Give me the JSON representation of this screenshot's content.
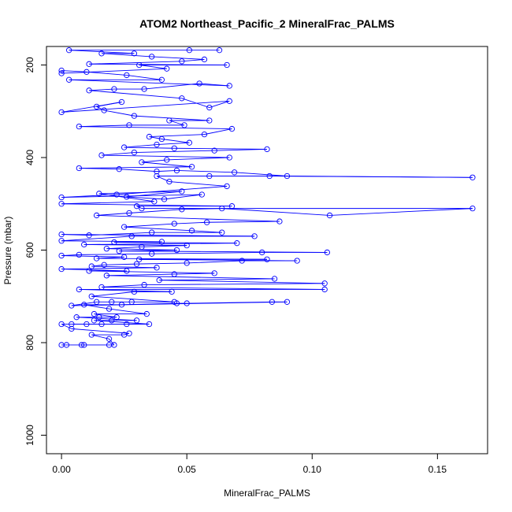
{
  "chart_data": {
    "type": "line",
    "title": "ATOM2 Northeast_Pacific_2 MineralFrac_PALMS",
    "xlabel": "MineralFrac_PALMS",
    "ylabel": "Pressure (mbar)",
    "xlim": [
      -0.006,
      0.17
    ],
    "ylim": [
      1040,
      160
    ],
    "y_inverted": true,
    "grid": false,
    "legend": "none",
    "x_ticks": [
      0.0,
      0.05,
      0.1,
      0.15
    ],
    "x_tick_labels": [
      "0.00",
      "0.05",
      "0.10",
      "0.15"
    ],
    "y_ticks": [
      200,
      400,
      600,
      800,
      1000
    ],
    "y_tick_labels": [
      "200",
      "400",
      "600",
      "800",
      "1000"
    ],
    "line_color": "#0000ff",
    "marker": "open-circle",
    "series": [
      {
        "points": [
          [
            0.0,
            805
          ],
          [
            0.002,
            805
          ],
          [
            0.008,
            805
          ],
          [
            0.009,
            805
          ],
          [
            0.019,
            805
          ],
          [
            0.021,
            805
          ],
          [
            0.019,
            792
          ],
          [
            0.012,
            783
          ],
          [
            0.025,
            783
          ],
          [
            0.027,
            780
          ],
          [
            0.004,
            770
          ],
          [
            0.0,
            760
          ],
          [
            0.004,
            760
          ],
          [
            0.01,
            760
          ],
          [
            0.016,
            760
          ],
          [
            0.026,
            760
          ],
          [
            0.035,
            760
          ],
          [
            0.013,
            752
          ],
          [
            0.02,
            752
          ],
          [
            0.03,
            752
          ],
          [
            0.006,
            745
          ],
          [
            0.015,
            745
          ],
          [
            0.022,
            745
          ],
          [
            0.013,
            738
          ],
          [
            0.034,
            738
          ],
          [
            0.019,
            727
          ],
          [
            0.009,
            718
          ],
          [
            0.024,
            718
          ],
          [
            0.046,
            715
          ],
          [
            0.05,
            715
          ],
          [
            0.084,
            712
          ],
          [
            0.09,
            712
          ],
          [
            0.004,
            720
          ],
          [
            0.014,
            712
          ],
          [
            0.02,
            712
          ],
          [
            0.028,
            712
          ],
          [
            0.045,
            712
          ],
          [
            0.012,
            700
          ],
          [
            0.029,
            690
          ],
          [
            0.044,
            690
          ],
          [
            0.007,
            685
          ],
          [
            0.105,
            685
          ],
          [
            0.016,
            680
          ],
          [
            0.033,
            675
          ],
          [
            0.105,
            672
          ],
          [
            0.039,
            665
          ],
          [
            0.085,
            662
          ],
          [
            0.018,
            655
          ],
          [
            0.045,
            652
          ],
          [
            0.061,
            650
          ],
          [
            0.011,
            645
          ],
          [
            0.026,
            645
          ],
          [
            0.0,
            641
          ],
          [
            0.038,
            638
          ],
          [
            0.012,
            635
          ],
          [
            0.017,
            632
          ],
          [
            0.03,
            630
          ],
          [
            0.05,
            628
          ],
          [
            0.072,
            623
          ],
          [
            0.094,
            623
          ],
          [
            0.031,
            620
          ],
          [
            0.082,
            620
          ],
          [
            0.014,
            618
          ],
          [
            0.025,
            615
          ],
          [
            0.0,
            612
          ],
          [
            0.007,
            610
          ],
          [
            0.036,
            608
          ],
          [
            0.08,
            605
          ],
          [
            0.106,
            605
          ],
          [
            0.023,
            602
          ],
          [
            0.046,
            600
          ],
          [
            0.018,
            597
          ],
          [
            0.032,
            593
          ],
          [
            0.05,
            590
          ],
          [
            0.009,
            588
          ],
          [
            0.07,
            585
          ],
          [
            0.021,
            583
          ],
          [
            0.04,
            582
          ],
          [
            0.0,
            580
          ],
          [
            0.028,
            570
          ],
          [
            0.077,
            570
          ],
          [
            0.0,
            566
          ],
          [
            0.011,
            568
          ],
          [
            0.036,
            562
          ],
          [
            0.064,
            562
          ],
          [
            0.052,
            558
          ],
          [
            0.025,
            550
          ],
          [
            0.045,
            543
          ],
          [
            0.058,
            540
          ],
          [
            0.087,
            538
          ],
          [
            0.014,
            525
          ],
          [
            0.027,
            520
          ],
          [
            0.048,
            512
          ],
          [
            0.064,
            510
          ],
          [
            0.107,
            525
          ],
          [
            0.164,
            510
          ],
          [
            0.032,
            510
          ],
          [
            0.03,
            505
          ],
          [
            0.068,
            505
          ],
          [
            0.0,
            500
          ],
          [
            0.037,
            495
          ],
          [
            0.015,
            478
          ],
          [
            0.048,
            473
          ],
          [
            0.026,
            485
          ],
          [
            0.041,
            490
          ],
          [
            0.056,
            480
          ],
          [
            0.0,
            486
          ],
          [
            0.022,
            480
          ],
          [
            0.066,
            462
          ],
          [
            0.043,
            452
          ],
          [
            0.038,
            440
          ],
          [
            0.059,
            440
          ],
          [
            0.083,
            440
          ],
          [
            0.164,
            443
          ],
          [
            0.09,
            440
          ],
          [
            0.069,
            432
          ],
          [
            0.046,
            428
          ],
          [
            0.038,
            430
          ],
          [
            0.023,
            425
          ],
          [
            0.007,
            423
          ],
          [
            0.052,
            420
          ],
          [
            0.032,
            410
          ],
          [
            0.042,
            405
          ],
          [
            0.067,
            400
          ],
          [
            0.016,
            395
          ],
          [
            0.029,
            389
          ],
          [
            0.061,
            385
          ],
          [
            0.082,
            382
          ],
          [
            0.045,
            380
          ],
          [
            0.025,
            378
          ],
          [
            0.038,
            372
          ],
          [
            0.051,
            368
          ],
          [
            0.04,
            360
          ],
          [
            0.035,
            355
          ],
          [
            0.057,
            350
          ],
          [
            0.068,
            338
          ],
          [
            0.007,
            333
          ],
          [
            0.027,
            330
          ],
          [
            0.049,
            330
          ],
          [
            0.043,
            320
          ],
          [
            0.059,
            320
          ],
          [
            0.029,
            310
          ],
          [
            0.017,
            298
          ],
          [
            0.014,
            290
          ],
          [
            0.024,
            280
          ],
          [
            0.0,
            302
          ],
          [
            0.067,
            278
          ],
          [
            0.059,
            292
          ],
          [
            0.048,
            272
          ],
          [
            0.011,
            255
          ],
          [
            0.021,
            252
          ],
          [
            0.033,
            252
          ],
          [
            0.055,
            240
          ],
          [
            0.067,
            245
          ],
          [
            0.003,
            232
          ],
          [
            0.04,
            232
          ],
          [
            0.026,
            222
          ],
          [
            0.01,
            215
          ],
          [
            0.0,
            212
          ],
          [
            0.0,
            218
          ],
          [
            0.042,
            208
          ],
          [
            0.031,
            200
          ],
          [
            0.066,
            200
          ],
          [
            0.011,
            198
          ],
          [
            0.048,
            192
          ],
          [
            0.057,
            188
          ],
          [
            0.036,
            182
          ],
          [
            0.016,
            175
          ],
          [
            0.029,
            175
          ],
          [
            0.003,
            168
          ],
          [
            0.051,
            168
          ],
          [
            0.063,
            168
          ]
        ]
      }
    ]
  }
}
